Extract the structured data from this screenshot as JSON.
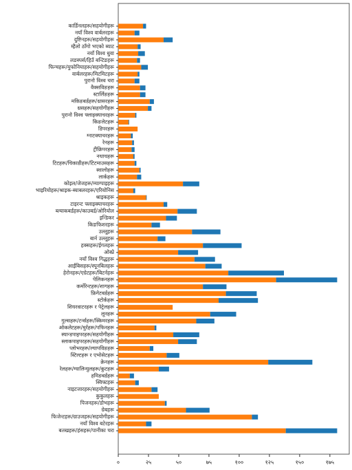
{
  "chart_data": {
    "type": "hbar-stacked",
    "categories": [
      "कार्डिनलहरू/सहयोगीहरू",
      "नयाँ विश्व वार्बलरहरू",
      "दुष्टिनहरू/सहयोगीहरू",
      "म्हैलो ठाँगो भएको ब्याट",
      "नयाँ विश्व धुवा",
      "लङस्पर्स/हिउँ बन्टिङहरू",
      "फिन्चहरू/युफोनियाहरू/सहयोगीहरू",
      "वार्बलरहरू/मिटमिटहरू",
      "पुरानो विश्व चरा",
      "वैक्सविङहरू",
      "स्टार्लिङहरू",
      "मकिङबर्डहरू/थ्रासरहरू",
      "थ्रसहरू/सहयोगीहरू",
      "पुरानो विश्व फ्लाइक्याचरहरू",
      "किङलेटहरू",
      "डिपरहरू",
      "ग्नाटक्याचरहरू",
      "रेनहरू",
      "ट्रीक्रिपरहरू",
      "नथाचहरू",
      "टिटहरू/चिकाडीहरू/टिटमाउसहरू",
      "स्वालोहरू",
      "लार्कहरू",
      "कोइल/जेजहरू/म्याग्पाइहरू",
      "भाइरियोहरू/श्राइक-ब्याबलरहरू/एरियोनिस",
      "श्राइकहरू",
      "टाइरन्ट फ्लाइक्याचरहरू",
      "ब्ल्याकबर्डहरू/काउबर्ड/ओरियोल",
      "इन्डिकर",
      "किङफिशरहरू",
      "उल्लूहरू",
      "बार्न उल्लूहरू",
      "हक्सहरू/ईगलहरू",
      "ओस्प्रे",
      "नयाँ विश्व गिद्धहरू",
      "आईबिसहरू/स्पूनबिलहरू",
      "हेरोनहरू/एग्रेटहरू/बिटर्नहरू",
      "पेलिकनहरू",
      "कर्मोरेन्टहरू/शागहरू",
      "फ्रिगेटबर्डहरू",
      "स्टोर्कहरू",
      "शियरवाटरहरू र पेट्रेलहरू",
      "लूनहरू",
      "गुल्सहरू/टर्न्सहरू/स्किमरहरू",
      "ओकलेटहरू/मुर्रहरू/पफिनहरू",
      "स्यान्डपाइपरहरू/सहयोगीहरू",
      "स्लाकपाइपरहरू/सहयोगीहरू",
      "प्लोभरहरू/ल्यापविङहरू",
      "स्टिल्टहरू र एभोसेटहरू",
      "क्रेनहरू",
      "रेलहरू/ग्यालिन्युलहरू/कुटहरू",
      "हमिङबर्डहरू",
      "स्विफ्टहरू",
      "नाइटजारहरू/सहयोगीहरू",
      "कुकुलहरू",
      "पिजनहरू/डोभहरू",
      "ग्रेबहरू",
      "फिजेन्टहरू/ग्राउजहरू/सहयोगीहरू",
      "नयाँ विश्व बटेरहरू",
      "बतखहरू/हंसहरू/पानीका चरा"
    ],
    "series": [
      {
        "color": "#ff7f0e",
        "values": [
          20.5,
          13.5,
          37.5,
          16,
          16.5,
          15.5,
          19,
          16,
          13.5,
          18,
          18,
          26,
          24.5,
          14,
          8.5,
          16,
          10.5,
          11.5,
          11,
          12.5,
          13.5,
          17.5,
          15.5,
          53.5,
          12.5,
          23,
          37.5,
          49,
          39.5,
          27.5,
          61,
          32.5,
          70,
          49.5,
          63,
          72,
          91,
          130.5,
          70,
          89,
          83,
          45,
          76,
          64.5,
          30,
          45.5,
          49.5,
          26,
          40,
          124,
          33.5,
          9.5,
          14,
          27.5,
          33.5,
          38.5,
          56,
          110.5,
          23,
          138.5
        ]
      },
      {
        "color": "#1f77b4",
        "values": [
          2.5,
          4,
          7.5,
          2.5,
          5.5,
          2.5,
          5.5,
          1.5,
          4,
          4.5,
          4.5,
          3.5,
          3,
          1,
          0.5,
          0,
          1.5,
          1.5,
          2.5,
          1,
          1.5,
          1,
          3.5,
          13.5,
          1.5,
          0.5,
          3,
          16,
          9,
          7,
          23.5,
          6.5,
          32,
          16.5,
          17,
          13.5,
          46,
          50.5,
          19.5,
          25.5,
          32.5,
          0,
          21.5,
          15,
          1.5,
          21.5,
          15.5,
          3,
          10.5,
          36.5,
          8.5,
          3.5,
          3,
          5,
          0,
          1.5,
          19.5,
          5,
          4.5,
          42.5
        ]
      }
    ],
    "xlim": [
      0,
      191
    ],
    "xticks": [
      {
        "value": 0,
        "label": "०"
      },
      {
        "value": 25,
        "label": "२५"
      },
      {
        "value": 50,
        "label": "५०"
      },
      {
        "value": 75,
        "label": "७५"
      },
      {
        "value": 100,
        "label": "१००"
      },
      {
        "value": 125,
        "label": "१२५"
      },
      {
        "value": 150,
        "label": "१५०"
      },
      {
        "value": 175,
        "label": "१७५"
      }
    ]
  }
}
